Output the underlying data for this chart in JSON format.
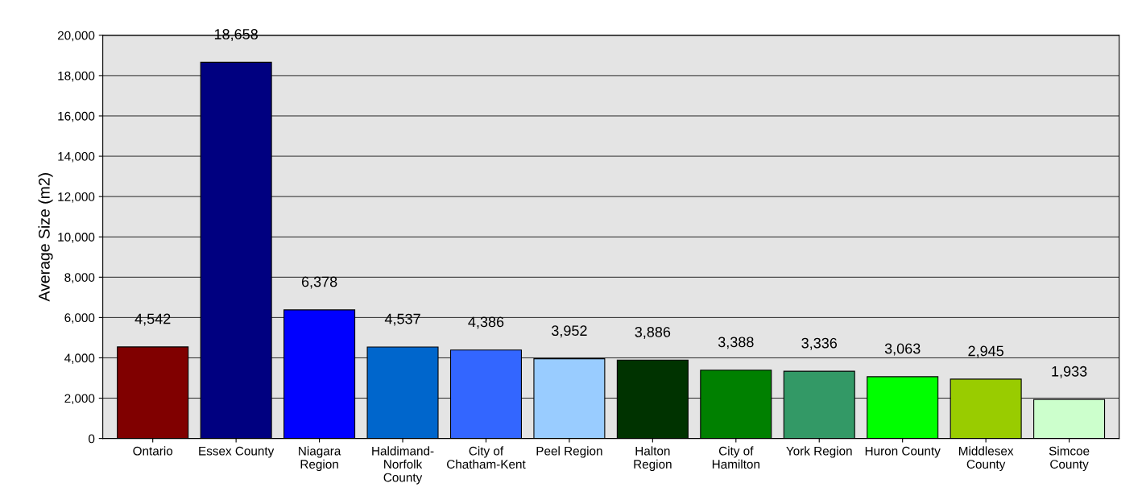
{
  "chart_data": {
    "type": "bar",
    "ylabel": "Average Size (m2)",
    "categories": [
      "Ontario",
      "Essex County",
      "Niagara\nRegion",
      "Haldimand-\nNorfolk\nCounty",
      "City of\nChatham-Kent",
      "Peel Region",
      "Halton\nRegion",
      "City of\nHamilton",
      "York Region",
      "Huron County",
      "Middlesex\nCounty",
      "Simcoe\nCounty"
    ],
    "values": [
      4542,
      18658,
      6378,
      4537,
      4386,
      3952,
      3886,
      3388,
      3336,
      3063,
      2945,
      1933
    ],
    "value_labels": [
      "4,542",
      "18,658",
      "6,378",
      "4,537",
      "4,386",
      "3,952",
      "3,886",
      "3,388",
      "3,336",
      "3,063",
      "2,945",
      "1,933"
    ],
    "colors": [
      "#800000",
      "#000080",
      "#0000ff",
      "#0066cc",
      "#3366ff",
      "#99ccff",
      "#003300",
      "#008000",
      "#339966",
      "#00ff00",
      "#99cc00",
      "#ccffcc"
    ],
    "ylim": [
      0,
      20000
    ],
    "yticks": [
      0,
      {
        "value": 2000,
        "label": "2,000"
      },
      {
        "value": 4000,
        "label": "4,000"
      },
      {
        "value": 6000,
        "label": "6,000"
      },
      {
        "value": 8000,
        "label": "8,000"
      },
      {
        "value": 10000,
        "label": "10,000"
      },
      {
        "value": 12000,
        "label": "12,000"
      },
      {
        "value": 14000,
        "label": "14,000"
      },
      {
        "value": 16000,
        "label": "16,000"
      },
      {
        "value": 18000,
        "label": "18,000"
      },
      {
        "value": 20000,
        "label": "20,000"
      }
    ],
    "grid": "y"
  }
}
